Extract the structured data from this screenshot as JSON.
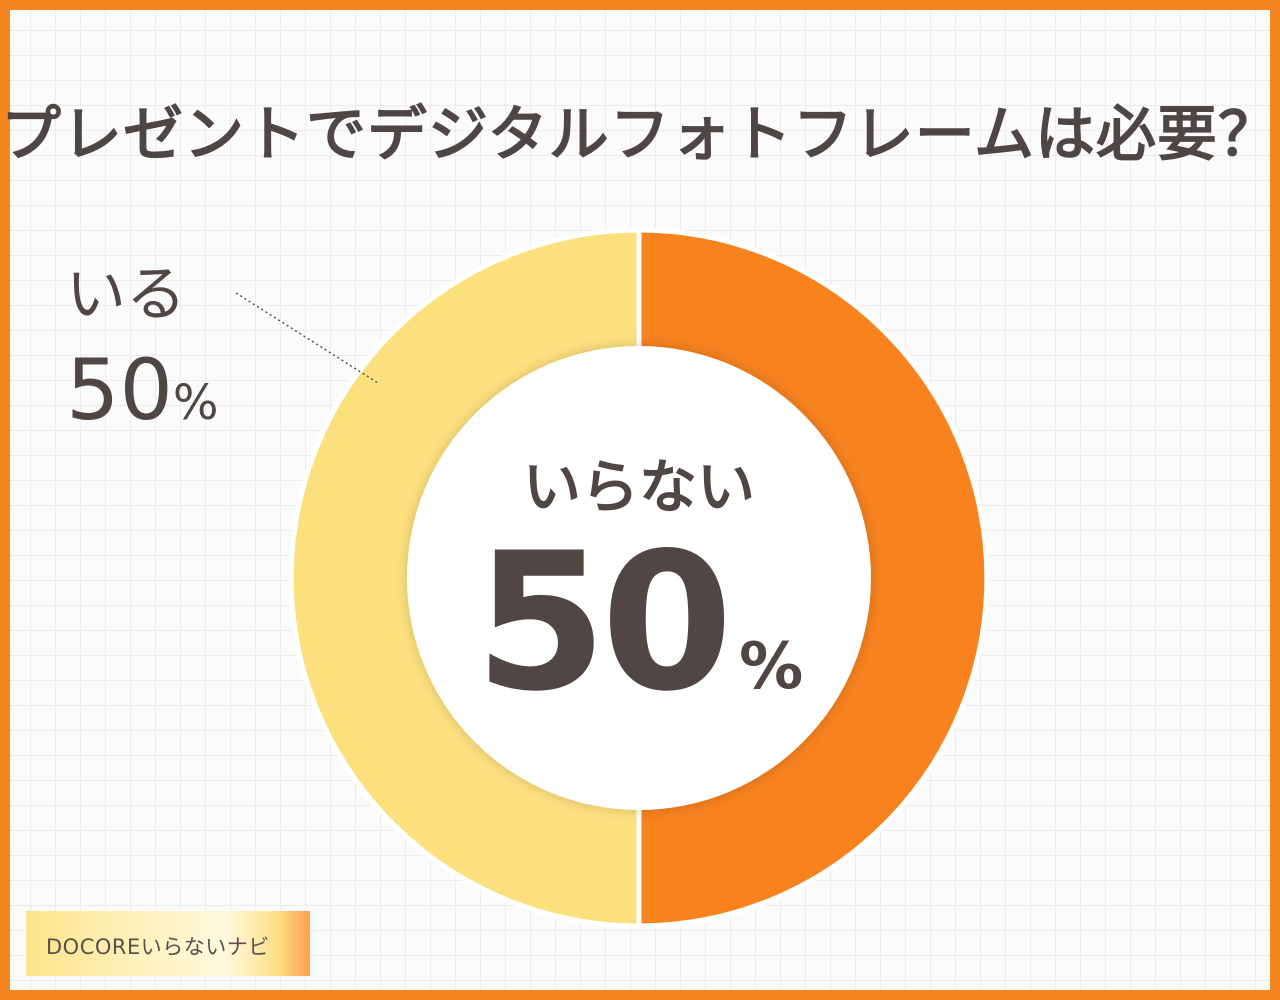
{
  "title": "プレゼントでデジタルフォトフレームは必要？",
  "colors": {
    "border": "#f5851f",
    "yes": "#fde07e",
    "no": "#f7821e",
    "text": "#504644"
  },
  "chart_data": {
    "type": "pie",
    "subtype": "donut",
    "slices": [
      {
        "label": "いらない",
        "value": 50,
        "color": "#f7821e"
      },
      {
        "label": "いる",
        "value": 50,
        "color": "#fde07e"
      }
    ]
  },
  "labels": {
    "no": {
      "text": "いらない",
      "value": "50",
      "unit": "%"
    },
    "yes": {
      "text": "いる",
      "value": "50",
      "unit": "%"
    }
  },
  "brand": "DOCOREいらないナビ"
}
